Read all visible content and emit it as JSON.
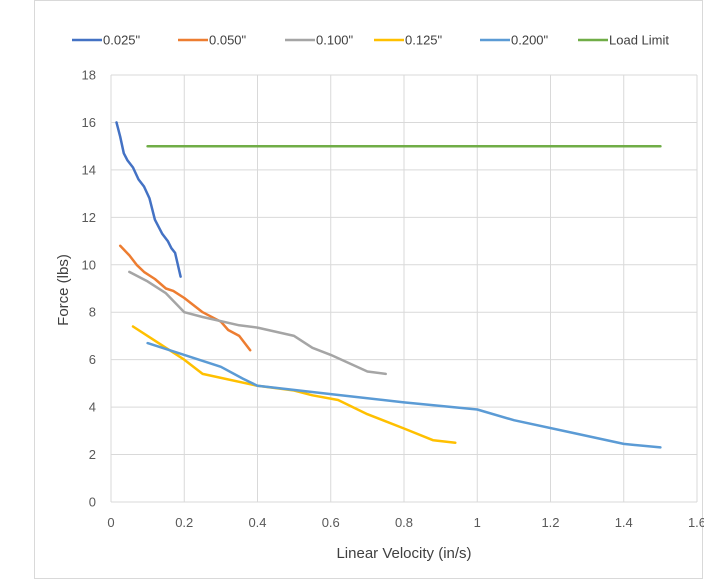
{
  "chart_data": {
    "type": "line",
    "xlabel": "Linear Velocity (in/s)",
    "ylabel": "Force (lbs)",
    "xlim": [
      0,
      1.6
    ],
    "ylim": [
      0,
      18
    ],
    "x_ticks": [
      0,
      0.2,
      0.4,
      0.6,
      0.8,
      1,
      1.2,
      1.4,
      1.6
    ],
    "x_tick_labels": [
      "0",
      "0.2",
      "0.4",
      "0.6",
      "0.8",
      "1",
      "1.2",
      "1.4",
      "1.6"
    ],
    "y_ticks": [
      0,
      2,
      4,
      6,
      8,
      10,
      12,
      14,
      16,
      18
    ],
    "y_tick_labels": [
      "0",
      "2",
      "4",
      "6",
      "8",
      "10",
      "12",
      "14",
      "16",
      "18"
    ],
    "grid": "vertical and horizontal",
    "legend_position": "top",
    "series": [
      {
        "name": "0.025\"",
        "color": "#4472C4",
        "points": [
          [
            0.015,
            16.0
          ],
          [
            0.025,
            15.4
          ],
          [
            0.035,
            14.7
          ],
          [
            0.045,
            14.4
          ],
          [
            0.06,
            14.1
          ],
          [
            0.075,
            13.6
          ],
          [
            0.09,
            13.3
          ],
          [
            0.105,
            12.8
          ],
          [
            0.12,
            11.9
          ],
          [
            0.14,
            11.3
          ],
          [
            0.155,
            11.0
          ],
          [
            0.165,
            10.7
          ],
          [
            0.175,
            10.5
          ],
          [
            0.19,
            9.5
          ]
        ]
      },
      {
        "name": "0.050\"",
        "color": "#ED7D31",
        "points": [
          [
            0.025,
            10.8
          ],
          [
            0.05,
            10.4
          ],
          [
            0.07,
            10.0
          ],
          [
            0.09,
            9.7
          ],
          [
            0.12,
            9.4
          ],
          [
            0.15,
            9.0
          ],
          [
            0.17,
            8.9
          ],
          [
            0.2,
            8.6
          ],
          [
            0.25,
            8.0
          ],
          [
            0.3,
            7.6
          ],
          [
            0.32,
            7.25
          ],
          [
            0.35,
            7.0
          ],
          [
            0.38,
            6.4
          ]
        ]
      },
      {
        "name": "0.100\"",
        "color": "#A5A5A5",
        "points": [
          [
            0.05,
            9.7
          ],
          [
            0.1,
            9.3
          ],
          [
            0.15,
            8.8
          ],
          [
            0.2,
            8.0
          ],
          [
            0.25,
            7.8
          ],
          [
            0.35,
            7.45
          ],
          [
            0.4,
            7.35
          ],
          [
            0.5,
            7.0
          ],
          [
            0.55,
            6.5
          ],
          [
            0.6,
            6.2
          ],
          [
            0.7,
            5.5
          ],
          [
            0.75,
            5.4
          ]
        ]
      },
      {
        "name": "0.125\"",
        "color": "#FFC000",
        "points": [
          [
            0.06,
            7.4
          ],
          [
            0.12,
            6.8
          ],
          [
            0.2,
            6.0
          ],
          [
            0.25,
            5.4
          ],
          [
            0.4,
            4.9
          ],
          [
            0.5,
            4.7
          ],
          [
            0.55,
            4.5
          ],
          [
            0.62,
            4.3
          ],
          [
            0.7,
            3.7
          ],
          [
            0.8,
            3.1
          ],
          [
            0.88,
            2.6
          ],
          [
            0.94,
            2.5
          ]
        ]
      },
      {
        "name": "0.200\"",
        "color": "#5B9BD5",
        "points": [
          [
            0.1,
            6.7
          ],
          [
            0.2,
            6.2
          ],
          [
            0.3,
            5.7
          ],
          [
            0.36,
            5.2
          ],
          [
            0.4,
            4.9
          ],
          [
            0.6,
            4.55
          ],
          [
            0.8,
            4.2
          ],
          [
            1.0,
            3.9
          ],
          [
            1.1,
            3.45
          ],
          [
            1.25,
            2.95
          ],
          [
            1.4,
            2.45
          ],
          [
            1.5,
            2.3
          ]
        ]
      },
      {
        "name": "Load Limit",
        "color": "#70AD47",
        "points": [
          [
            0.1,
            15.0
          ],
          [
            1.5,
            15.0
          ]
        ]
      }
    ]
  }
}
